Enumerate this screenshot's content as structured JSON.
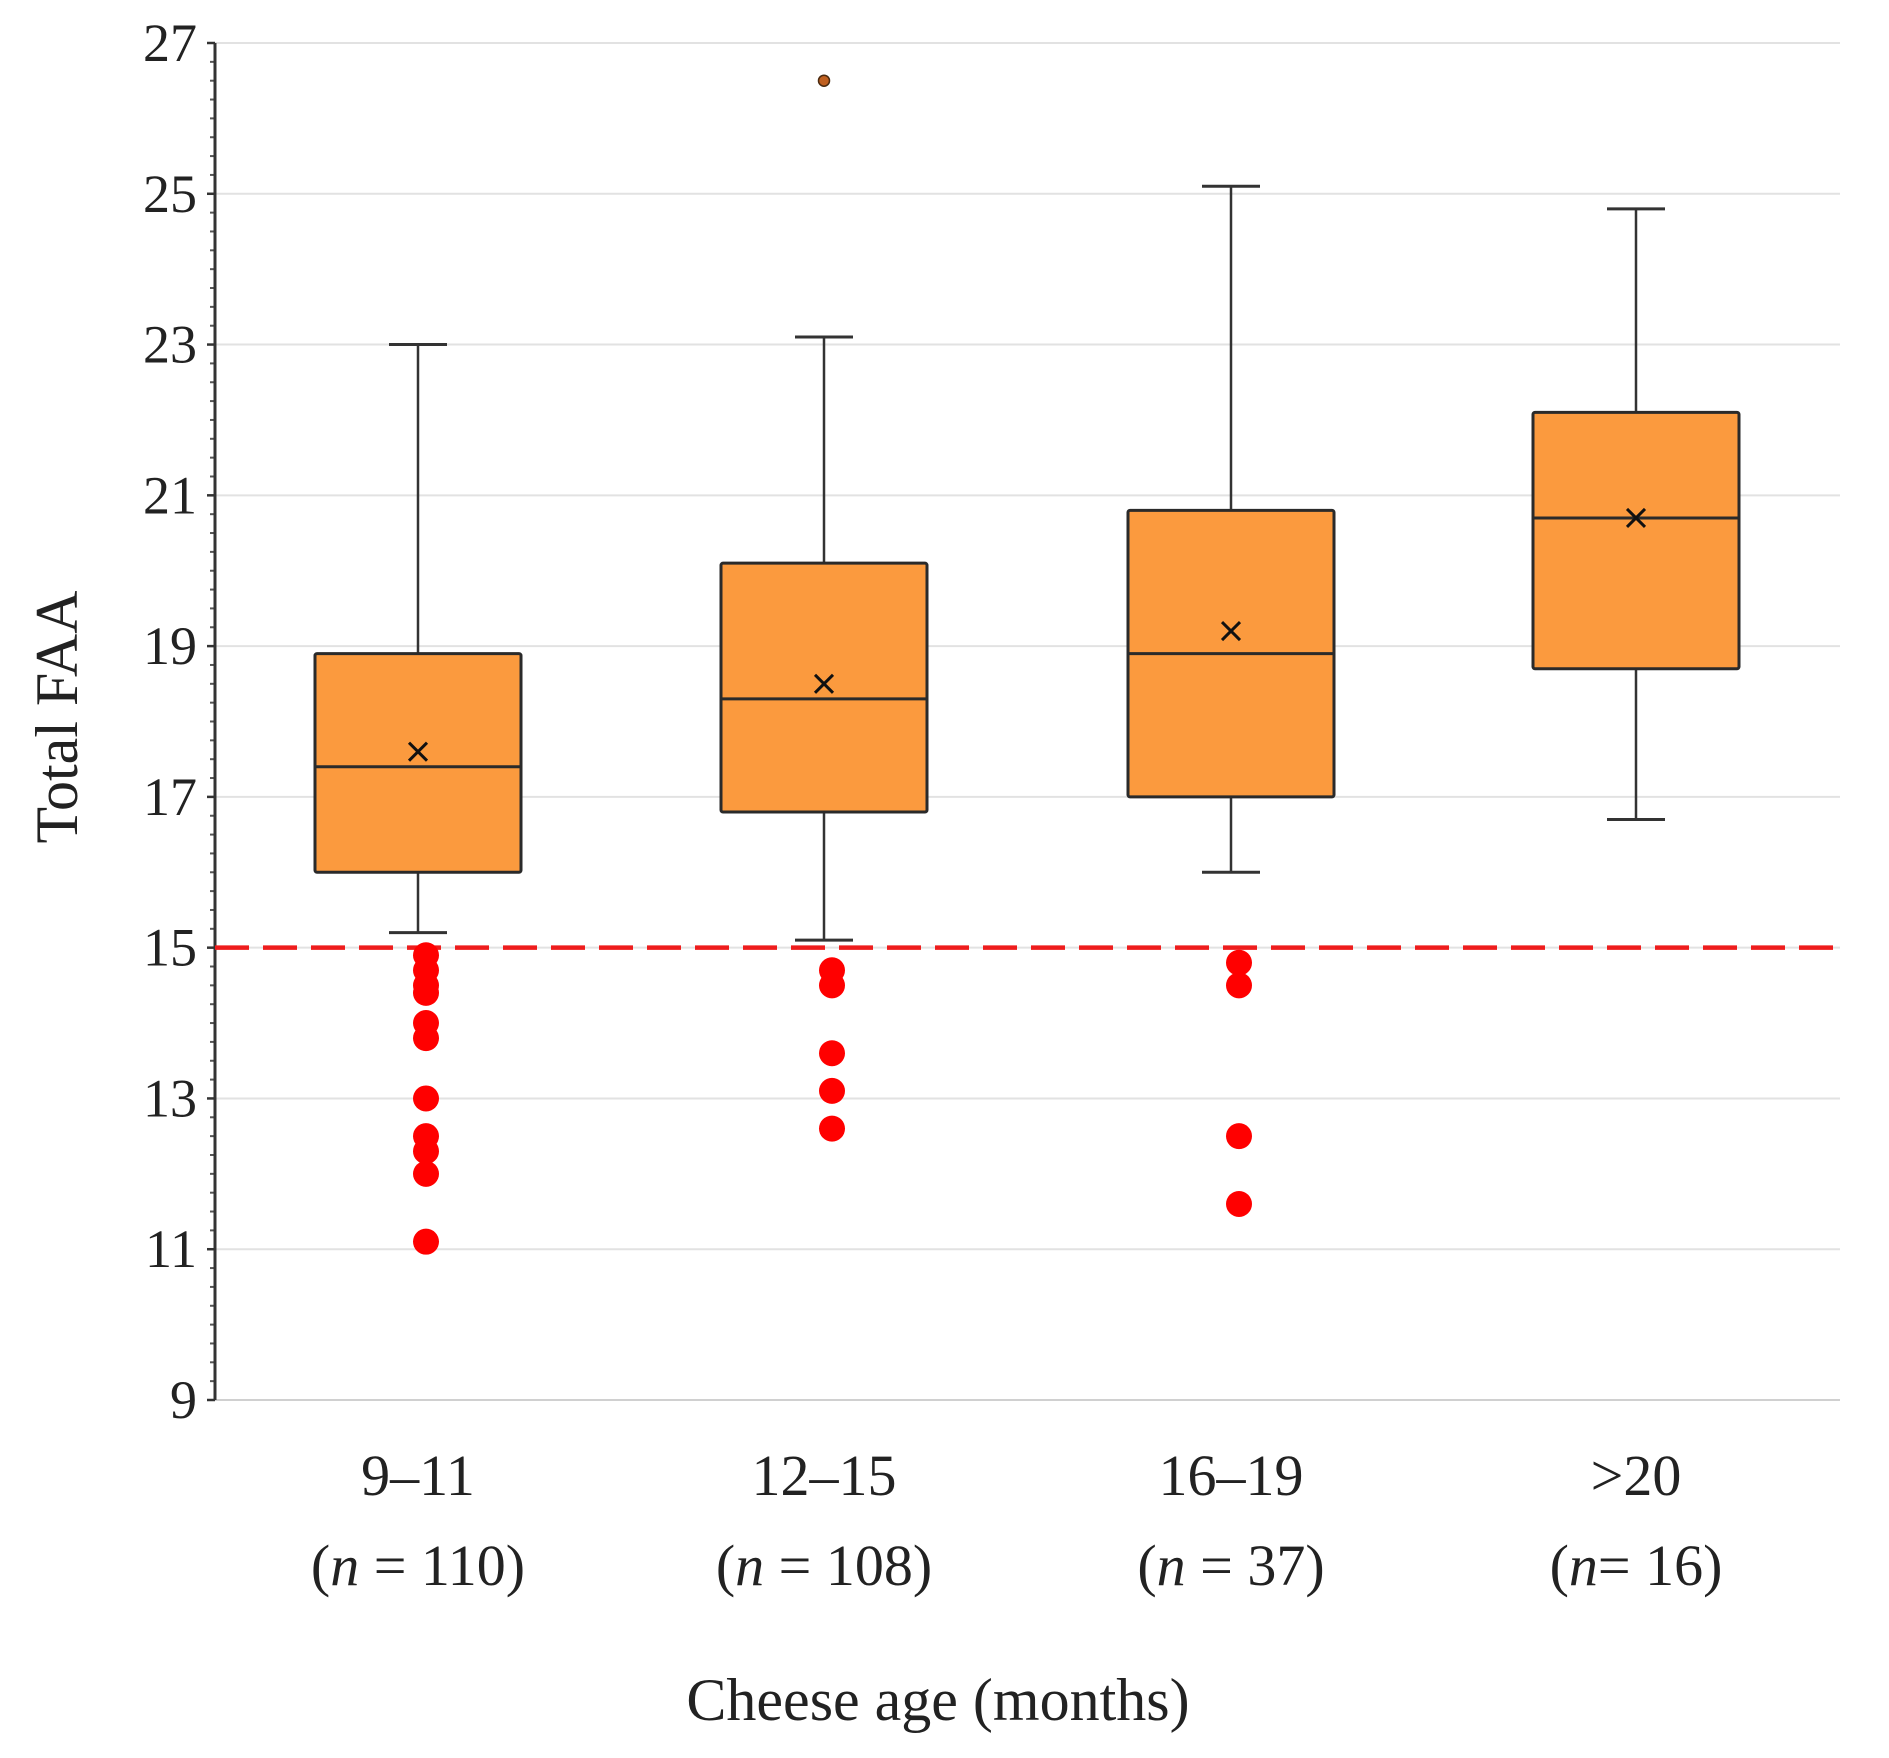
{
  "chart_data": {
    "type": "boxplot",
    "title": "",
    "xlabel": "Cheese age (months)",
    "ylabel": "Total FAA",
    "ylim": [
      9,
      27
    ],
    "yticks": [
      9,
      11,
      13,
      15,
      17,
      19,
      21,
      23,
      25,
      27
    ],
    "grid": true,
    "threshold": {
      "value": 15,
      "color": "#ee1c1c",
      "style": "dashed"
    },
    "box_color": "#fb9a3e",
    "low_point_color": "#ff0000",
    "categories": [
      {
        "label": "9–11",
        "n_prefix": "(",
        "n_symbol": "n",
        "n_text": " = 110)",
        "whisker_low": 15.2,
        "q1": 16.0,
        "median": 17.4,
        "q3": 18.9,
        "whisker_high": 23.0,
        "mean": 17.6,
        "outliers_high": [],
        "below_threshold": [
          14.9,
          14.7,
          14.5,
          14.4,
          14.0,
          13.8,
          13.0,
          12.5,
          12.3,
          12.0,
          11.1
        ]
      },
      {
        "label": "12–15",
        "n_prefix": "(",
        "n_symbol": "n",
        "n_text": " = 108)",
        "whisker_low": 15.1,
        "q1": 16.8,
        "median": 18.3,
        "q3": 20.1,
        "whisker_high": 23.1,
        "mean": 18.5,
        "outliers_high": [
          26.5
        ],
        "below_threshold": [
          14.7,
          14.5,
          13.6,
          13.1,
          12.6
        ]
      },
      {
        "label": "16–19",
        "n_prefix": "(",
        "n_symbol": "n",
        "n_text": " = 37)",
        "whisker_low": 16.0,
        "q1": 17.0,
        "median": 18.9,
        "q3": 20.8,
        "whisker_high": 25.1,
        "mean": 19.2,
        "outliers_high": [],
        "below_threshold": [
          14.8,
          14.5,
          12.5,
          11.6
        ]
      },
      {
        "label": ">20",
        "n_prefix": "(",
        "n_symbol": "n",
        "n_text": "= 16)",
        "whisker_low": 16.7,
        "q1": 18.7,
        "median": 20.7,
        "q3": 22.1,
        "whisker_high": 24.8,
        "mean": 20.7,
        "outliers_high": [],
        "below_threshold": []
      }
    ]
  }
}
